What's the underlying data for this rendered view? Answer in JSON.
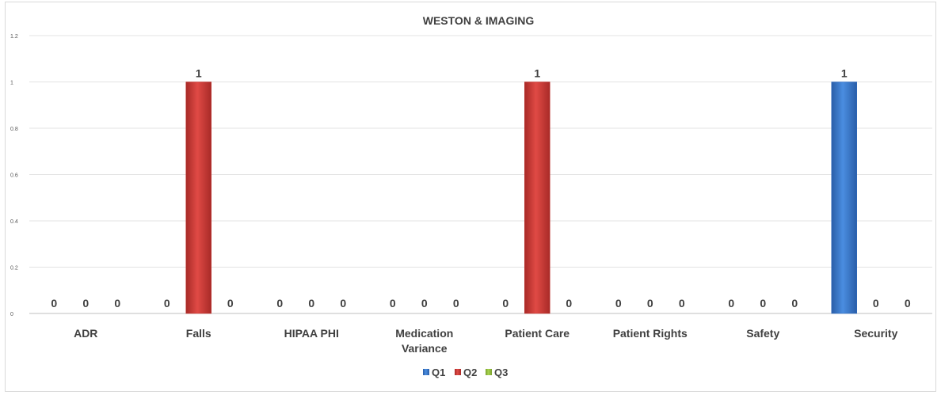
{
  "chart_data": {
    "type": "bar",
    "title": "WESTON & IMAGING",
    "categories": [
      "ADR",
      "Falls",
      "HIPAA PHI",
      "Medication Variance",
      "Patient Care",
      "Patient Rights",
      "Safety",
      "Security"
    ],
    "series": [
      {
        "name": "Q1",
        "values": [
          0,
          0,
          0,
          0,
          0,
          0,
          0,
          1
        ],
        "color": "#2e6bc0"
      },
      {
        "name": "Q2",
        "values": [
          0,
          1,
          0,
          0,
          1,
          0,
          0,
          0
        ],
        "color": "#c0332f"
      },
      {
        "name": "Q3",
        "values": [
          0,
          0,
          0,
          0,
          0,
          0,
          0,
          0
        ],
        "color": "#8fba3c"
      }
    ],
    "ylim": [
      0,
      1.2
    ],
    "yticks": [
      0,
      0.2,
      0.4,
      0.6,
      0.8,
      1,
      1.2
    ],
    "ytick_labels": [
      "0",
      "0.2",
      "0.4",
      "0.6",
      "0.8",
      "1",
      "1.2"
    ],
    "category_labels": [
      [
        "ADR"
      ],
      [
        "Falls"
      ],
      [
        "HIPAA PHI"
      ],
      [
        "Medication",
        "Variance"
      ],
      [
        "Patient Care"
      ],
      [
        "Patient Rights"
      ],
      [
        "Safety"
      ],
      [
        "Security"
      ]
    ],
    "grid": true,
    "legend_position": "bottom-center",
    "data_labels": true
  }
}
